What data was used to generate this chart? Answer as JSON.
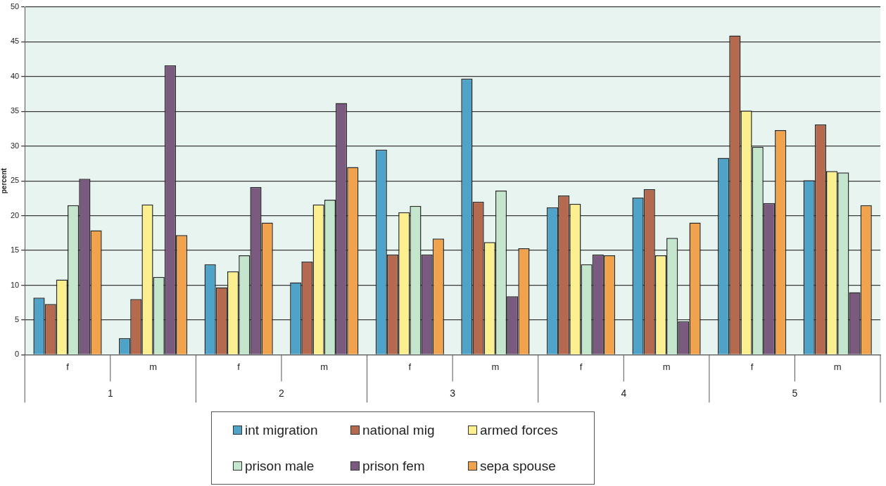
{
  "chart_data": {
    "type": "bar",
    "categories": [
      "f",
      "m",
      "f",
      "m",
      "f",
      "m",
      "f",
      "m",
      "f",
      "m"
    ],
    "annotations": [
      "1",
      "2",
      "3",
      "4",
      "5"
    ],
    "ylabel": "percent",
    "ylim": [
      0,
      50
    ],
    "yticks": [
      0,
      5,
      10,
      15,
      20,
      25,
      30,
      35,
      40,
      45,
      50
    ],
    "grid": "y",
    "legend": "bottom",
    "series": [
      {
        "name": "int migration",
        "color": "#4fa3c8",
        "values": [
          8.2,
          2.4,
          13.0,
          10.4,
          29.5,
          39.7,
          21.2,
          22.6,
          28.3,
          25.1
        ]
      },
      {
        "name": "national mig",
        "color": "#b5694e",
        "values": [
          7.3,
          8.0,
          9.7,
          13.4,
          14.4,
          22.0,
          22.9,
          23.8,
          45.9,
          33.1
        ]
      },
      {
        "name": "armed forces",
        "color": "#fbef8f",
        "values": [
          10.8,
          21.6,
          12.0,
          21.6,
          20.5,
          16.2,
          21.7,
          14.3,
          35.1,
          26.4
        ]
      },
      {
        "name": "prison male",
        "color": "#c4e6cc",
        "values": [
          21.5,
          11.2,
          14.3,
          22.3,
          21.4,
          23.6,
          13.0,
          16.8,
          29.9,
          26.2
        ]
      },
      {
        "name": "prison fem",
        "color": "#7b5a80",
        "values": [
          25.3,
          41.6,
          24.1,
          36.2,
          14.4,
          8.4,
          14.4,
          4.8,
          21.8,
          9.0
        ]
      },
      {
        "name": "sepa spouse",
        "color": "#f0a24c",
        "values": [
          17.9,
          17.2,
          19.0,
          27.0,
          16.7,
          15.3,
          14.3,
          19.0,
          32.3,
          21.5
        ]
      }
    ]
  }
}
